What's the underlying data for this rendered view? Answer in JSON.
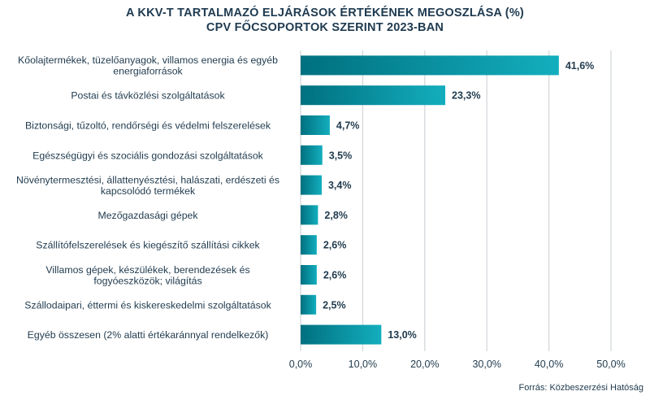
{
  "chart_data": {
    "type": "bar",
    "orientation": "horizontal",
    "title_line1": "A KKV-T TARTALMAZÓ ELJÁRÁSOK ÉRTÉKÉNEK MEGOSZLÁSA (%)",
    "title_line2": "CPV FŐCSOPORTOK SZERINT 2023-BAN",
    "categories": [
      [
        "Kőolajtermékek, tüzelőanyagok, villamos energia és egyéb",
        "energiaforrások"
      ],
      [
        "Postai és távközlési szolgáltatások"
      ],
      [
        "Biztonsági, tűzoltó, rendőrségi és védelmi felszerelések"
      ],
      [
        "Egészségügyi és szociális gondozási szolgáltatások"
      ],
      [
        "Növénytermesztési, állattenyésztési, halászati, erdészeti és",
        "kapcsolódó termékek"
      ],
      [
        "Mezőgazdasági gépek"
      ],
      [
        "Szállítófelszerelések és kiegészítő szállítási cikkek"
      ],
      [
        "Villamos gépek, készülékek, berendezések és",
        "fogyóeszközök; világítás"
      ],
      [
        "Szállodaipari, éttermi és kiskereskedelmi szolgáltatások"
      ],
      [
        "Egyéb összesen (2% alatti értékaránnyal rendelkezők)"
      ]
    ],
    "values": [
      41.6,
      23.3,
      4.7,
      3.5,
      3.4,
      2.8,
      2.6,
      2.6,
      2.5,
      13.0
    ],
    "value_labels": [
      "41,6%",
      "23,3%",
      "4,7%",
      "3,5%",
      "3,4%",
      "2,8%",
      "2,6%",
      "2,6%",
      "2,5%",
      "13,0%"
    ],
    "xlim": [
      0,
      50
    ],
    "xticks": [
      0,
      10,
      20,
      30,
      40,
      50
    ],
    "xtick_labels": [
      "0,0%",
      "10,0%",
      "20,0%",
      "30,0%",
      "40,0%",
      "50,0%"
    ],
    "grid": true,
    "colors": {
      "bar_dark": "#00707f",
      "bar_light": "#13aebe",
      "grid": "#d4d8dc",
      "text": "#1f3a4d"
    }
  },
  "source": "Forrás: Közbeszerzési Hatóság"
}
